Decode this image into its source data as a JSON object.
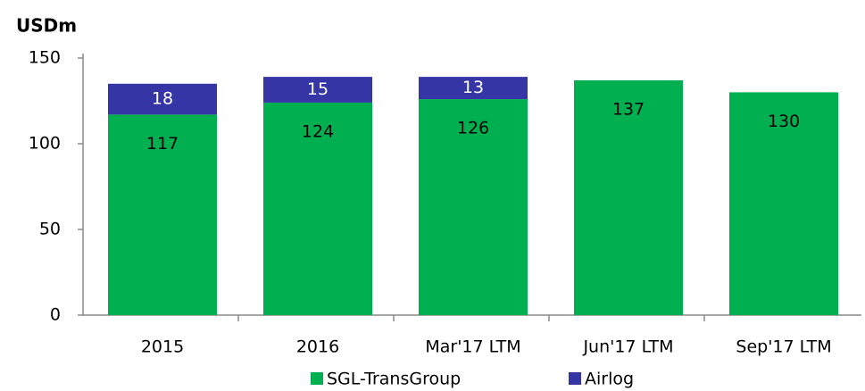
{
  "chart_data": {
    "type": "stacked_bar",
    "y_label": "USDm",
    "categories": [
      "2015",
      "2016",
      "Mar'17 LTM",
      "Jun'17 LTM",
      "Sep'17 LTM"
    ],
    "series": [
      {
        "name": "SGL-TransGroup",
        "color": "#00b050",
        "values": [
          117,
          124,
          126,
          137,
          130
        ]
      },
      {
        "name": "Airlog",
        "color": "#3535a6",
        "values": [
          18,
          15,
          13,
          null,
          null
        ]
      }
    ],
    "ylim": [
      0,
      150
    ],
    "yticks": [
      0,
      50,
      100,
      150
    ],
    "legend": "bottom"
  }
}
